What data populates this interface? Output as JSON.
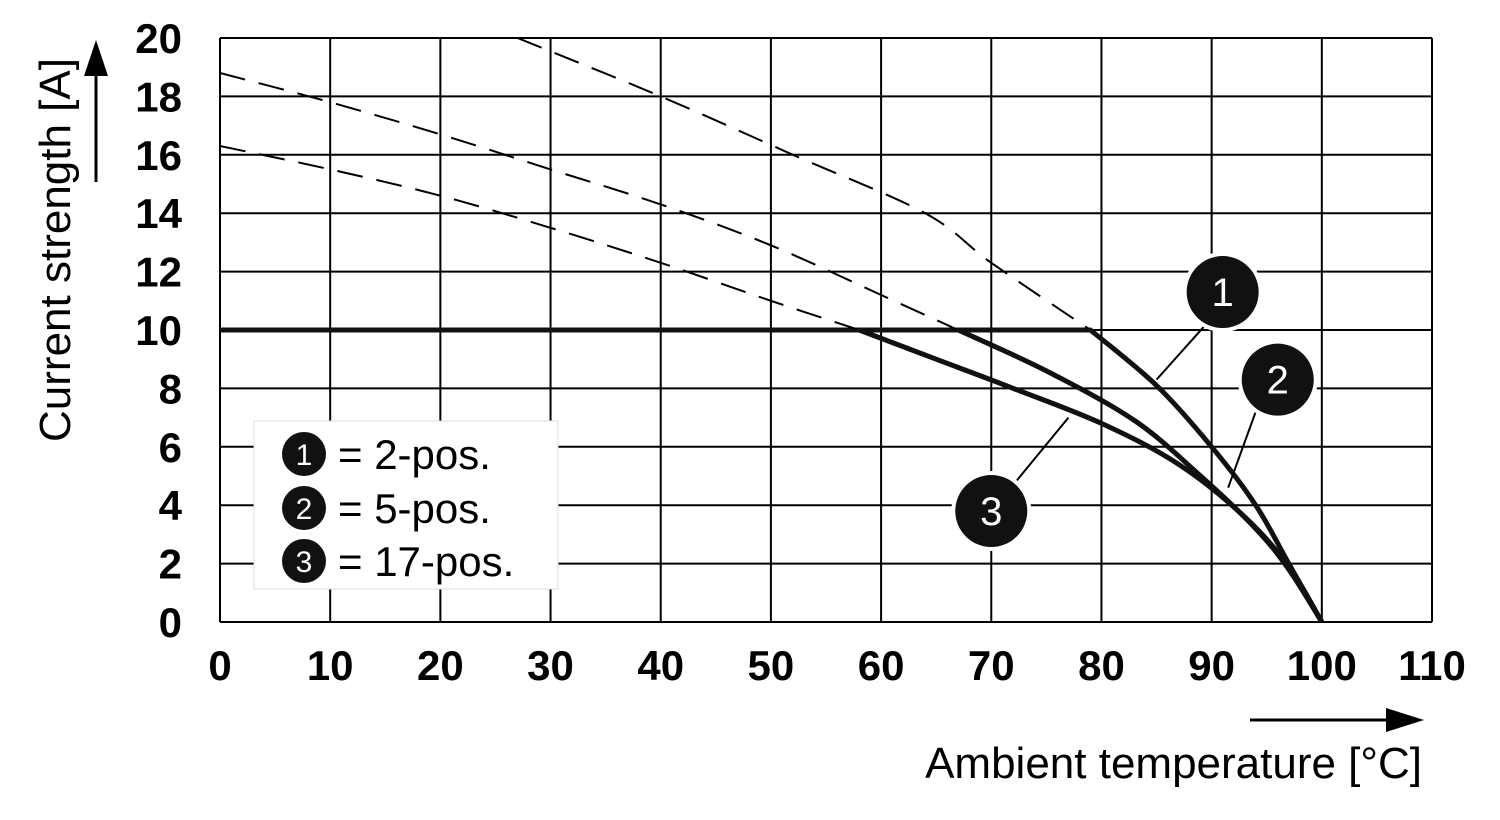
{
  "chart_data": {
    "type": "line",
    "title": "",
    "xlabel": "Ambient temperature [°C]",
    "ylabel": "Current strength [A]",
    "xlim": [
      0,
      110
    ],
    "ylim": [
      0,
      20
    ],
    "x_ticks": [
      0,
      10,
      20,
      30,
      40,
      50,
      60,
      70,
      80,
      90,
      100,
      110
    ],
    "y_ticks": [
      0,
      2,
      4,
      6,
      8,
      10,
      12,
      14,
      16,
      18,
      20
    ],
    "grid": true,
    "limit_line": {
      "y": 10,
      "x_range": [
        0,
        79
      ]
    },
    "series": [
      {
        "name": "1",
        "legend": "= 2-pos.",
        "dashed": {
          "x": [
            27,
            40,
            52,
            64,
            70,
            79
          ],
          "y": [
            20,
            18,
            16,
            14,
            12.3,
            10
          ]
        },
        "solid": {
          "x": [
            79,
            85,
            90,
            94,
            97,
            100
          ],
          "y": [
            10,
            8.1,
            6,
            4,
            2,
            0
          ]
        }
      },
      {
        "name": "2",
        "legend": "= 5-pos.",
        "dashed": {
          "x": [
            0,
            10,
            20,
            30,
            40,
            50,
            60,
            67
          ],
          "y": [
            18.8,
            17.8,
            16.7,
            15.5,
            14.3,
            12.9,
            11.2,
            10
          ]
        },
        "solid": {
          "x": [
            67,
            75,
            83,
            89,
            94,
            97,
            100
          ],
          "y": [
            10,
            8.6,
            6.9,
            5,
            3.2,
            1.8,
            0
          ]
        }
      },
      {
        "name": "3",
        "legend": "= 17-pos.",
        "dashed": {
          "x": [
            0,
            10,
            20,
            30,
            40,
            50,
            58
          ],
          "y": [
            16.3,
            15.5,
            14.6,
            13.5,
            12.3,
            11,
            10
          ]
        },
        "solid": {
          "x": [
            58,
            65,
            72,
            80,
            87,
            93,
            97,
            100
          ],
          "y": [
            10,
            9,
            8,
            6.8,
            5.4,
            3.6,
            1.9,
            0
          ]
        }
      }
    ],
    "callouts": [
      {
        "label": "1",
        "badge": [
          91,
          11.3
        ],
        "leader_from": [
          89.5,
          10.2
        ],
        "leader_to": [
          85,
          8.3
        ]
      },
      {
        "label": "2",
        "badge": [
          96,
          8.3
        ],
        "leader_from": [
          94,
          7.2
        ],
        "leader_to": [
          91.5,
          4.6
        ]
      },
      {
        "label": "3",
        "badge": [
          70,
          3.8
        ],
        "leader_from": [
          72,
          4.7
        ],
        "leader_to": [
          77,
          7
        ]
      }
    ],
    "legend": {
      "position": "bottom-left",
      "items": [
        {
          "label": "1",
          "text": "= 2-pos."
        },
        {
          "label": "2",
          "text": "= 5-pos."
        },
        {
          "label": "3",
          "text": "= 17-pos."
        }
      ]
    }
  }
}
